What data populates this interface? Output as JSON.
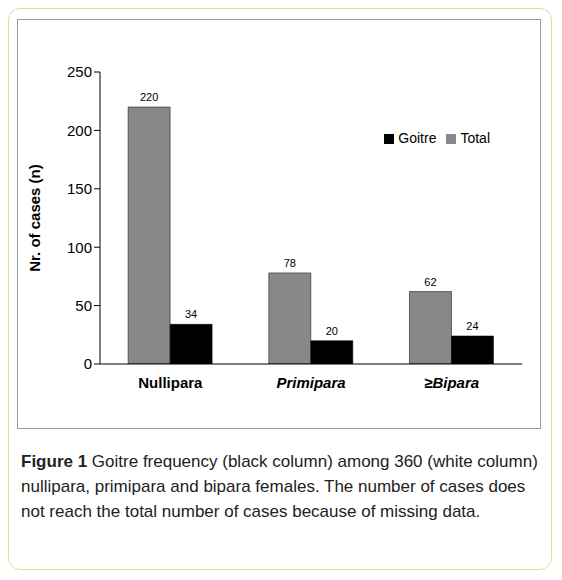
{
  "chart_data": {
    "type": "bar",
    "y_label": "Nr. of cases (n)",
    "categories": [
      "Nullipara",
      "Primipara",
      "≥Bipara"
    ],
    "series": [
      {
        "name": "Total",
        "color": "#888888",
        "values": [
          220,
          78,
          62
        ]
      },
      {
        "name": "Goitre",
        "color": "#000000",
        "values": [
          34,
          20,
          24
        ]
      }
    ],
    "ylim": [
      0,
      250
    ],
    "yticks": [
      0,
      50,
      100,
      150,
      200,
      250
    ],
    "grid": false,
    "legend": "upper right",
    "data_labels": true,
    "caption_label": "Figure 1",
    "caption": "Goitre frequency (black column) among 360 (white column) nullipara, primipara and bipara females. The number of cases does not reach the total number of cases because of missing data."
  }
}
